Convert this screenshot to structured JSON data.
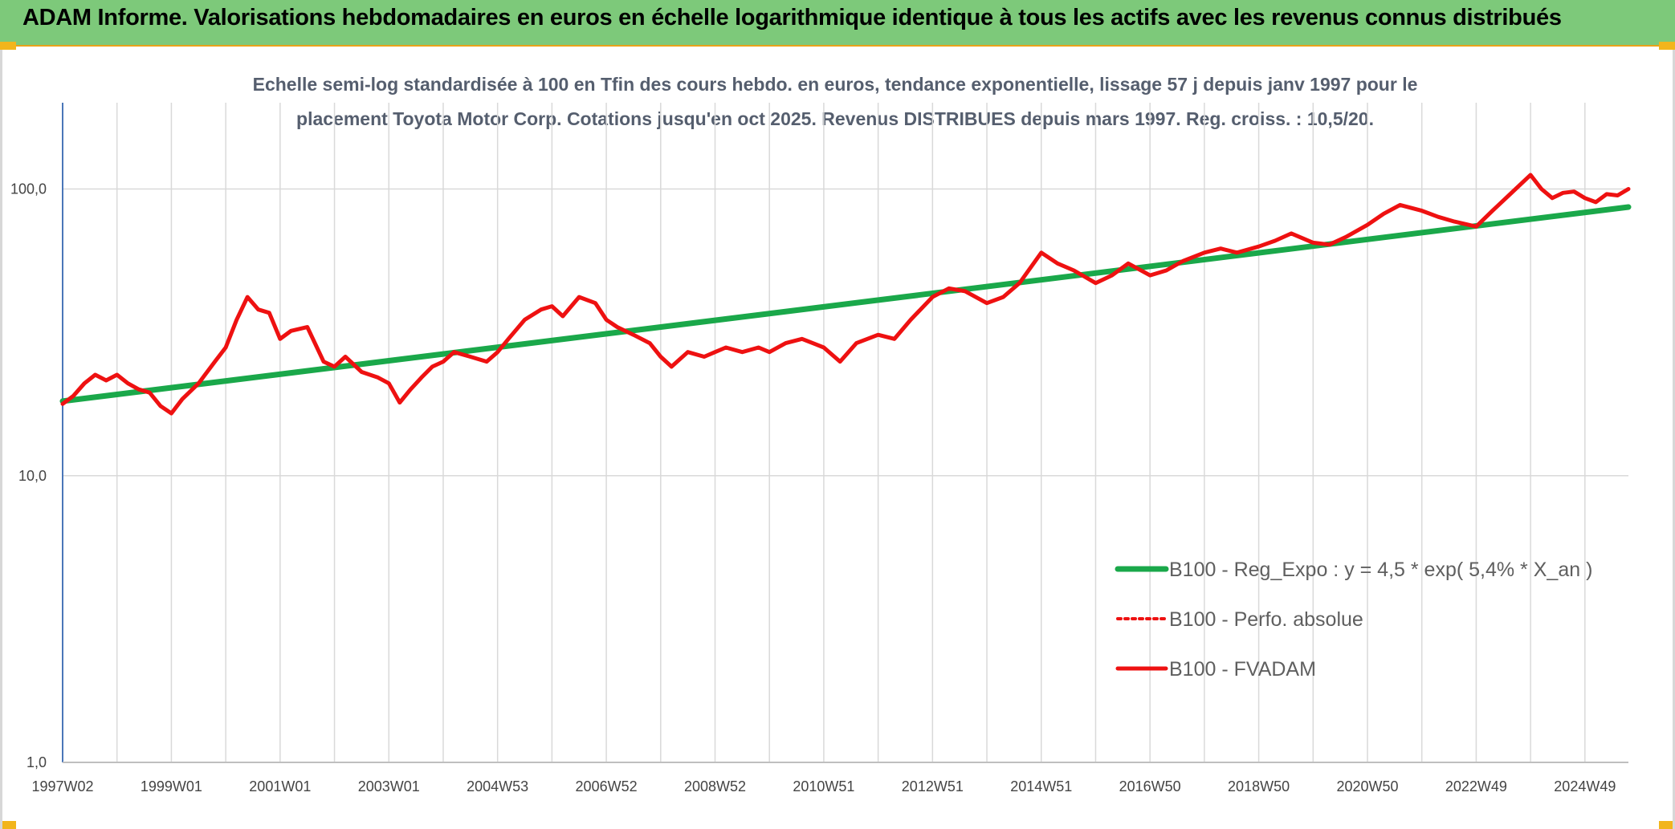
{
  "banner": {
    "title": "ADAM Informe. Valorisations hebdomadaires en euros en échelle logarithmique identique à tous les actifs avec les revenus connus distribués"
  },
  "colors": {
    "banner_bg": "#7dc97a",
    "regression": "#1aa84a",
    "fvadam": "#ee1111",
    "perfo": "#ee1111",
    "grid": "#d9d9d9"
  },
  "chart_data": {
    "type": "line",
    "title_lines": [
      "Echelle semi-log standardisée à 100 en Tfin des cours hebdo. en euros, tendance exponentielle, lissage 57 j depuis janv 1997 pour le",
      "placement Toyota Motor Corp. Cotations jusqu'en oct 2025. Revenus DISTRIBUES depuis mars 1997. Reg. croiss. : 10,5/20."
    ],
    "y_scale": "log",
    "ylim": [
      1,
      200
    ],
    "y_ticks": [
      {
        "value": 1,
        "label": "1,0"
      },
      {
        "value": 10,
        "label": "10,0"
      },
      {
        "value": 100,
        "label": "100,0"
      }
    ],
    "xlim": [
      1997.0,
      2025.8
    ],
    "x_ticks": [
      {
        "value": 1997.0,
        "label": "1997W02"
      },
      {
        "value": 1999.0,
        "label": "1999W01"
      },
      {
        "value": 2001.0,
        "label": "2001W01"
      },
      {
        "value": 2003.0,
        "label": "2003W01"
      },
      {
        "value": 2005.0,
        "label": "2004W53"
      },
      {
        "value": 2007.0,
        "label": "2006W52"
      },
      {
        "value": 2009.0,
        "label": "2008W52"
      },
      {
        "value": 2011.0,
        "label": "2010W51"
      },
      {
        "value": 2013.0,
        "label": "2012W51"
      },
      {
        "value": 2015.0,
        "label": "2014W51"
      },
      {
        "value": 2017.0,
        "label": "2016W50"
      },
      {
        "value": 2019.0,
        "label": "2018W50"
      },
      {
        "value": 2021.0,
        "label": "2020W50"
      },
      {
        "value": 2023.0,
        "label": "2022W49"
      },
      {
        "value": 2025.0,
        "label": "2024W49"
      }
    ],
    "grid": true,
    "legend_position": "bottom-right",
    "legend": [
      {
        "key": "reg",
        "label": "B100 - Reg_Expo : y = 4,5 * exp( 5,4% *  X_an )",
        "style": "solid-green"
      },
      {
        "key": "perfo",
        "label": "B100 - Perfo. absolue",
        "style": "dotted-red"
      },
      {
        "key": "fvadam",
        "label": "B100 - FVADAM",
        "style": "solid-red"
      }
    ],
    "series": [
      {
        "key": "reg",
        "x": [
          1997.0,
          2025.8
        ],
        "y": [
          18.2,
          86.5
        ]
      },
      {
        "key": "fvadam",
        "x": [
          1997.0,
          1997.2,
          1997.4,
          1997.6,
          1997.8,
          1998.0,
          1998.2,
          1998.4,
          1998.6,
          1998.8,
          1999.0,
          1999.2,
          1999.5,
          1999.8,
          2000.0,
          2000.2,
          2000.4,
          2000.6,
          2000.8,
          2001.0,
          2001.2,
          2001.5,
          2001.8,
          2002.0,
          2002.2,
          2002.5,
          2002.8,
          2003.0,
          2003.2,
          2003.4,
          2003.6,
          2003.8,
          2004.0,
          2004.2,
          2004.5,
          2004.8,
          2005.0,
          2005.2,
          2005.5,
          2005.8,
          2006.0,
          2006.2,
          2006.5,
          2006.8,
          2007.0,
          2007.2,
          2007.5,
          2007.8,
          2008.0,
          2008.2,
          2008.5,
          2008.8,
          2009.0,
          2009.2,
          2009.5,
          2009.8,
          2010.0,
          2010.3,
          2010.6,
          2011.0,
          2011.3,
          2011.6,
          2012.0,
          2012.3,
          2012.6,
          2013.0,
          2013.3,
          2013.6,
          2014.0,
          2014.3,
          2014.6,
          2015.0,
          2015.3,
          2015.6,
          2016.0,
          2016.3,
          2016.6,
          2017.0,
          2017.3,
          2017.6,
          2018.0,
          2018.3,
          2018.6,
          2019.0,
          2019.3,
          2019.6,
          2020.0,
          2020.3,
          2020.6,
          2021.0,
          2021.3,
          2021.6,
          2022.0,
          2022.3,
          2022.6,
          2023.0,
          2023.3,
          2023.6,
          2024.0,
          2024.2,
          2024.4,
          2024.6,
          2024.8,
          2025.0,
          2025.2,
          2025.4,
          2025.6,
          2025.8
        ],
        "y": [
          17.8,
          19.0,
          21.0,
          22.5,
          21.5,
          22.5,
          21.0,
          20.0,
          19.5,
          17.5,
          16.5,
          18.5,
          21.0,
          25.0,
          28.0,
          35.0,
          42.0,
          38.0,
          37.0,
          30.0,
          32.0,
          33.0,
          25.0,
          24.0,
          26.0,
          23.0,
          22.0,
          21.0,
          18.0,
          20.0,
          22.0,
          24.0,
          25.0,
          27.0,
          26.0,
          25.0,
          27.0,
          30.0,
          35.0,
          38.0,
          39.0,
          36.0,
          42.0,
          40.0,
          35.0,
          33.0,
          31.0,
          29.0,
          26.0,
          24.0,
          27.0,
          26.0,
          27.0,
          28.0,
          27.0,
          28.0,
          27.0,
          29.0,
          30.0,
          28.0,
          25.0,
          29.0,
          31.0,
          30.0,
          35.0,
          42.0,
          45.0,
          44.0,
          40.0,
          42.0,
          47.0,
          60.0,
          55.0,
          52.0,
          47.0,
          50.0,
          55.0,
          50.0,
          52.0,
          56.0,
          60.0,
          62.0,
          60.0,
          63.0,
          66.0,
          70.0,
          65.0,
          64.0,
          68.0,
          75.0,
          82.0,
          88.0,
          84.0,
          80.0,
          77.0,
          74.0,
          84.0,
          95.0,
          112.0,
          100.0,
          93.0,
          97.0,
          98.0,
          93.0,
          90.0,
          96.0,
          95.0,
          100.0
        ]
      },
      {
        "key": "perfo",
        "x": [],
        "y": []
      }
    ]
  }
}
